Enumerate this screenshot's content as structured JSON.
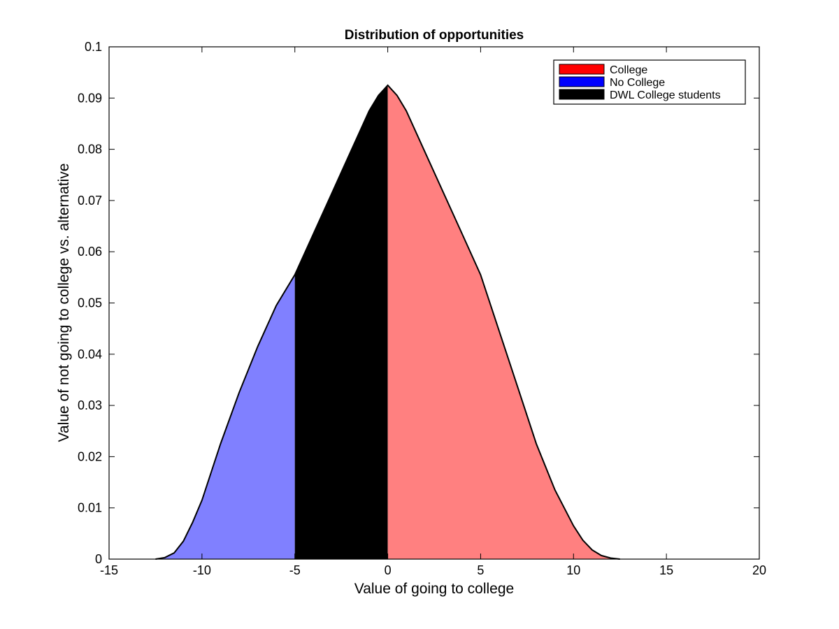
{
  "chart_data": {
    "type": "area",
    "title": "Distribution of opportunities",
    "xlabel": "Value of going to college",
    "ylabel": "Value of not going to college vs. alternative",
    "xlim": [
      -15,
      20
    ],
    "ylim": [
      0,
      0.1
    ],
    "xticks": [
      -15,
      -10,
      -5,
      0,
      5,
      10,
      15,
      20
    ],
    "xtick_labels": [
      "-15",
      "-10",
      "-5",
      "0",
      "5",
      "10",
      "15",
      "20"
    ],
    "yticks": [
      0,
      0.01,
      0.02,
      0.03,
      0.04,
      0.05,
      0.06,
      0.07,
      0.08,
      0.09,
      0.1
    ],
    "ytick_labels": [
      "0",
      "0.01",
      "0.02",
      "0.03",
      "0.04",
      "0.05",
      "0.06",
      "0.07",
      "0.08",
      "0.09",
      "0.1"
    ],
    "grid": false,
    "legend_position": "top-right",
    "legend": [
      {
        "label": "College",
        "color": "#ff0000"
      },
      {
        "label": "No College",
        "color": "#0000ff"
      },
      {
        "label": "DWL College students",
        "color": "#000000"
      }
    ],
    "curve": {
      "x": [
        -12.5,
        -12,
        -11.5,
        -11,
        -10.5,
        -10,
        -9,
        -8,
        -7,
        -6,
        -5,
        -4,
        -3,
        -2,
        -1,
        -0.5,
        0,
        0.5,
        1,
        2,
        3,
        4,
        5,
        6,
        7,
        8,
        9,
        10,
        10.5,
        11,
        11.5,
        12,
        12.5
      ],
      "y": [
        0,
        0.0003,
        0.0012,
        0.0035,
        0.0072,
        0.0115,
        0.0225,
        0.0325,
        0.0415,
        0.0495,
        0.0555,
        0.0635,
        0.0715,
        0.0795,
        0.0875,
        0.0905,
        0.0925,
        0.0905,
        0.0875,
        0.0795,
        0.0715,
        0.0635,
        0.0555,
        0.0445,
        0.0335,
        0.0225,
        0.0135,
        0.0065,
        0.0037,
        0.0018,
        0.0007,
        0.0002,
        0
      ]
    },
    "regions": [
      {
        "name": "No College",
        "x_from": -12.5,
        "x_to": -5,
        "fill": "#8080ff"
      },
      {
        "name": "DWL College students",
        "x_from": -5,
        "x_to": 0,
        "fill": "#000000"
      },
      {
        "name": "College",
        "x_from": 0,
        "x_to": 12.5,
        "fill": "#ff8080"
      }
    ]
  }
}
